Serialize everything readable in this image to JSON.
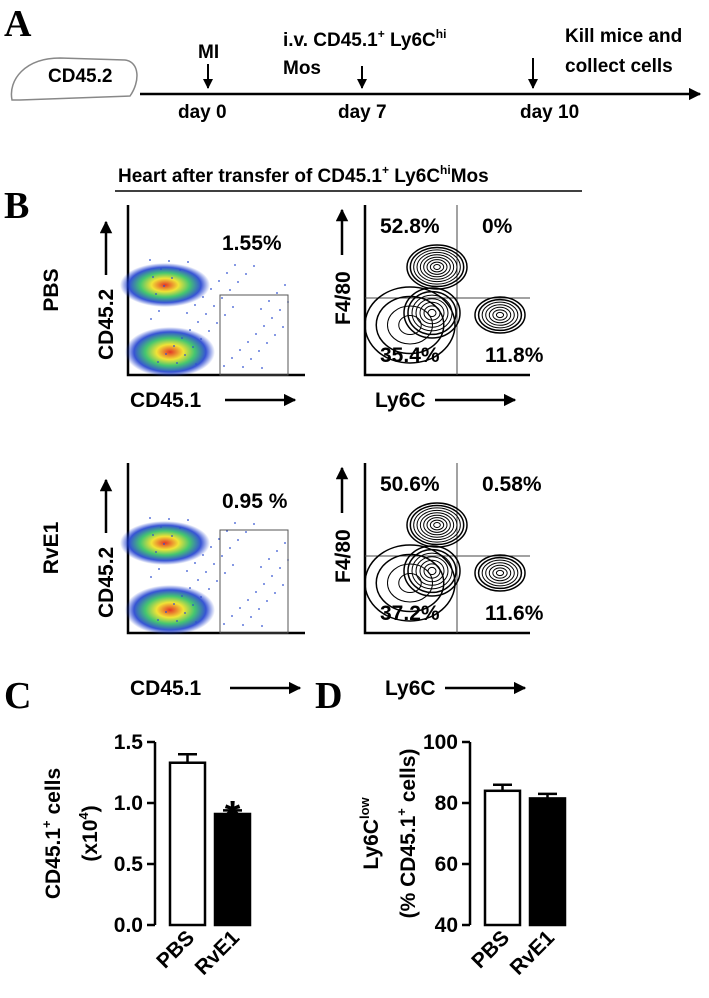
{
  "panel_a": {
    "letter": "A",
    "mouse": "CD45.2",
    "events": [
      {
        "label": [
          "MI"
        ],
        "day": "day 0"
      },
      {
        "label": [
          [
            "i.v. CD45.1",
            "+",
            " Ly6C",
            "hi"
          ],
          "Mos"
        ],
        "day": "day 7"
      },
      {
        "label": [
          "Kill mice and",
          "collect cells"
        ],
        "day": "day 10"
      }
    ]
  },
  "panel_b": {
    "letter": "B",
    "heading": [
      "Heart  after transfer of CD45.1",
      "+",
      " Ly6C",
      "hi",
      "Mos"
    ],
    "rows": [
      {
        "group": "PBS",
        "x_label": "CD45.1",
        "y_label": "CD45.2",
        "gate": "1.55%",
        "contour_x": "Ly6C",
        "contour_y": "F4/80",
        "quadrants": [
          "52.8%",
          "0%",
          "35.4%",
          "11.8%"
        ]
      },
      {
        "group": "RvE1",
        "x_label": "CD45.1",
        "y_label": "CD45.2",
        "gate": "0.95 %",
        "contour_x": "Ly6C",
        "contour_y": "F4/80",
        "quadrants": [
          "50.6%",
          "0.58%",
          "37.2%",
          "11.6%"
        ]
      }
    ]
  },
  "chart_data": [
    {
      "type": "bar",
      "panel": "C",
      "categories": [
        "PBS",
        "RvE1"
      ],
      "values": [
        1.33,
        0.91
      ],
      "errors": [
        0.07,
        0.03
      ],
      "colors": [
        "#ffffff",
        "#000000"
      ],
      "y_label": [
        [
          "CD45.1",
          "+",
          " cells"
        ],
        [
          "(x10",
          "4",
          ")"
        ]
      ],
      "ylim": [
        0,
        1.5
      ],
      "yticks": [
        {
          "value": 0,
          "label": "0.0"
        },
        {
          "value": 0.5,
          "label": "0.5"
        },
        {
          "value": 1,
          "label": "1.0"
        },
        {
          "value": 1.5,
          "label": "1.5"
        }
      ],
      "annotations": [
        "*"
      ]
    },
    {
      "type": "bar",
      "panel": "D",
      "categories": [
        "PBS",
        "RvE1"
      ],
      "values": [
        84,
        81.5
      ],
      "errors": [
        2,
        1.5
      ],
      "colors": [
        "#ffffff",
        "#000000"
      ],
      "y_label": [
        [
          "Ly6C",
          "low"
        ],
        [
          "(% CD45.1",
          "+",
          " cells)"
        ]
      ],
      "ylim": [
        40,
        100
      ],
      "yticks": [
        40,
        60,
        80,
        100
      ]
    }
  ]
}
